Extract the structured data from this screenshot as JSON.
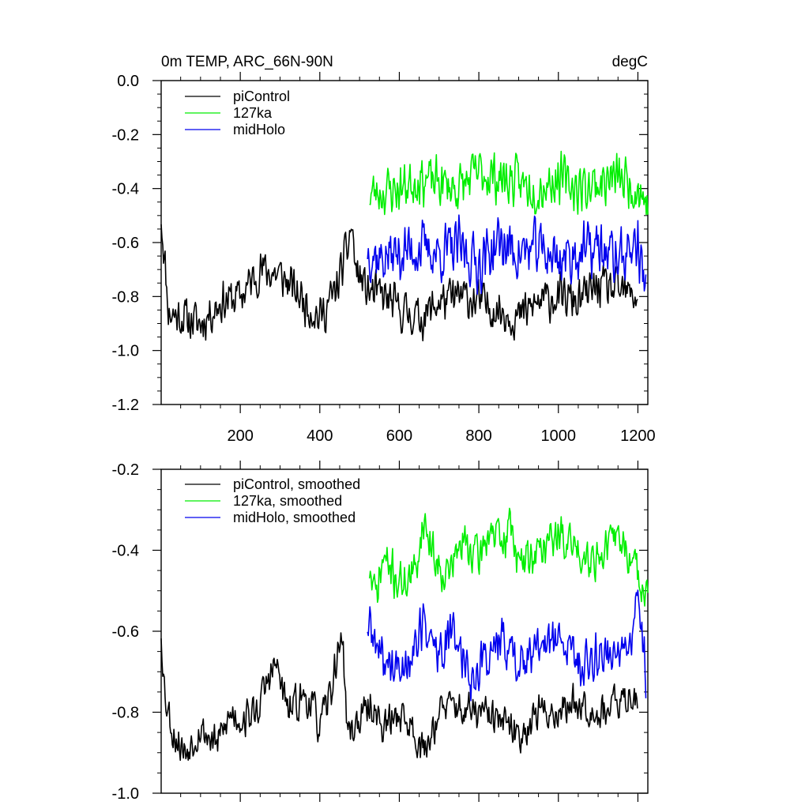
{
  "chart_data": [
    {
      "type": "line",
      "title": "0m TEMP, ARC_66N-90N",
      "units": "degC",
      "xlabel": "",
      "ylabel": "",
      "xlim": [
        1,
        1225
      ],
      "ylim": [
        -1.2,
        0.0
      ],
      "xticks": [
        200,
        400,
        600,
        800,
        1000,
        1200
      ],
      "xtick_labels": [
        "200",
        "400",
        "600",
        "800",
        "1000",
        "1200"
      ],
      "yticks": [
        0.0,
        -0.2,
        -0.4,
        -0.6,
        -0.8,
        -1.0,
        -1.2
      ],
      "ytick_labels": [
        "0.0",
        "-0.2",
        "-0.4",
        "-0.6",
        "-0.8",
        "-1.0",
        "-1.2"
      ],
      "legend": "top-left",
      "series": [
        {
          "name": "piControl",
          "color": "#000000",
          "x": [
            1,
            1200
          ],
          "anchors": [
            [
              1,
              -0.5
            ],
            [
              20,
              -0.86
            ],
            [
              60,
              -0.88
            ],
            [
              100,
              -0.9
            ],
            [
              150,
              -0.82
            ],
            [
              200,
              -0.8
            ],
            [
              250,
              -0.7
            ],
            [
              300,
              -0.72
            ],
            [
              350,
              -0.8
            ],
            [
              400,
              -0.88
            ],
            [
              440,
              -0.78
            ],
            [
              470,
              -0.62
            ],
            [
              480,
              -0.53
            ],
            [
              490,
              -0.7
            ],
            [
              520,
              -0.78
            ],
            [
              560,
              -0.8
            ],
            [
              600,
              -0.85
            ],
            [
              655,
              -0.88
            ],
            [
              700,
              -0.82
            ],
            [
              760,
              -0.8
            ],
            [
              800,
              -0.82
            ],
            [
              850,
              -0.85
            ],
            [
              900,
              -0.88
            ],
            [
              950,
              -0.82
            ],
            [
              1000,
              -0.8
            ],
            [
              1050,
              -0.82
            ],
            [
              1100,
              -0.76
            ],
            [
              1150,
              -0.78
            ],
            [
              1200,
              -0.8
            ]
          ],
          "amp": 0.06,
          "seed": 11
        },
        {
          "name": "127ka",
          "color": "#00ee00",
          "x": [
            525,
            1225
          ],
          "anchors": [
            [
              525,
              -0.42
            ],
            [
              600,
              -0.4
            ],
            [
              650,
              -0.36
            ],
            [
              700,
              -0.38
            ],
            [
              750,
              -0.4
            ],
            [
              800,
              -0.34
            ],
            [
              850,
              -0.36
            ],
            [
              900,
              -0.38
            ],
            [
              950,
              -0.4
            ],
            [
              1000,
              -0.36
            ],
            [
              1050,
              -0.4
            ],
            [
              1100,
              -0.38
            ],
            [
              1150,
              -0.36
            ],
            [
              1200,
              -0.4
            ],
            [
              1225,
              -0.46
            ]
          ],
          "amp": 0.07,
          "seed": 23
        },
        {
          "name": "midHolo",
          "color": "#0000ee",
          "x": [
            520,
            1220
          ],
          "anchors": [
            [
              520,
              -0.62
            ],
            [
              550,
              -0.66
            ],
            [
              600,
              -0.64
            ],
            [
              650,
              -0.62
            ],
            [
              700,
              -0.64
            ],
            [
              750,
              -0.62
            ],
            [
              800,
              -0.68
            ],
            [
              850,
              -0.6
            ],
            [
              900,
              -0.64
            ],
            [
              950,
              -0.62
            ],
            [
              1000,
              -0.66
            ],
            [
              1050,
              -0.64
            ],
            [
              1100,
              -0.62
            ],
            [
              1150,
              -0.66
            ],
            [
              1200,
              -0.6
            ],
            [
              1220,
              -0.8
            ]
          ],
          "amp": 0.08,
          "seed": 37
        }
      ]
    },
    {
      "type": "line",
      "title": "",
      "xlabel": "",
      "ylabel": "",
      "xlim": [
        1,
        1225
      ],
      "ylim": [
        -1.0,
        -0.2
      ],
      "xticks": [
        200,
        400,
        600,
        800,
        1000,
        1200
      ],
      "yticks": [
        -0.2,
        -0.4,
        -0.6,
        -0.8,
        -1.0
      ],
      "ytick_labels": [
        "-0.2",
        "-0.4",
        "-0.6",
        "-0.8",
        "-1.0"
      ],
      "legend": "top-left",
      "series": [
        {
          "name": "piControl, smoothed",
          "color": "#000000",
          "x": [
            1,
            1200
          ],
          "anchors": [
            [
              1,
              -0.6
            ],
            [
              10,
              -0.75
            ],
            [
              30,
              -0.85
            ],
            [
              60,
              -0.9
            ],
            [
              100,
              -0.84
            ],
            [
              140,
              -0.88
            ],
            [
              180,
              -0.8
            ],
            [
              200,
              -0.82
            ],
            [
              240,
              -0.8
            ],
            [
              270,
              -0.72
            ],
            [
              290,
              -0.68
            ],
            [
              320,
              -0.8
            ],
            [
              360,
              -0.76
            ],
            [
              380,
              -0.78
            ],
            [
              400,
              -0.84
            ],
            [
              430,
              -0.74
            ],
            [
              455,
              -0.6
            ],
            [
              470,
              -0.85
            ],
            [
              500,
              -0.82
            ],
            [
              530,
              -0.78
            ],
            [
              560,
              -0.84
            ],
            [
              600,
              -0.8
            ],
            [
              640,
              -0.85
            ],
            [
              660,
              -0.9
            ],
            [
              700,
              -0.8
            ],
            [
              740,
              -0.78
            ],
            [
              760,
              -0.8
            ],
            [
              800,
              -0.8
            ],
            [
              850,
              -0.82
            ],
            [
              900,
              -0.86
            ],
            [
              950,
              -0.8
            ],
            [
              1000,
              -0.8
            ],
            [
              1050,
              -0.77
            ],
            [
              1100,
              -0.8
            ],
            [
              1150,
              -0.78
            ],
            [
              1200,
              -0.75
            ]
          ],
          "amp": 0.035,
          "seed": 53
        },
        {
          "name": "127ka, smoothed",
          "color": "#00ee00",
          "x": [
            525,
            1225
          ],
          "anchors": [
            [
              525,
              -0.45
            ],
            [
              540,
              -0.52
            ],
            [
              560,
              -0.42
            ],
            [
              600,
              -0.48
            ],
            [
              640,
              -0.46
            ],
            [
              660,
              -0.32
            ],
            [
              690,
              -0.42
            ],
            [
              720,
              -0.46
            ],
            [
              760,
              -0.38
            ],
            [
              800,
              -0.42
            ],
            [
              830,
              -0.34
            ],
            [
              860,
              -0.4
            ],
            [
              880,
              -0.32
            ],
            [
              900,
              -0.44
            ],
            [
              950,
              -0.4
            ],
            [
              1000,
              -0.36
            ],
            [
              1050,
              -0.4
            ],
            [
              1100,
              -0.42
            ],
            [
              1150,
              -0.36
            ],
            [
              1200,
              -0.46
            ],
            [
              1225,
              -0.5
            ]
          ],
          "amp": 0.04,
          "seed": 71
        },
        {
          "name": "midHolo, smoothed",
          "color": "#0000ee",
          "x": [
            520,
            1220
          ],
          "anchors": [
            [
              520,
              -0.58
            ],
            [
              550,
              -0.66
            ],
            [
              600,
              -0.7
            ],
            [
              640,
              -0.64
            ],
            [
              660,
              -0.58
            ],
            [
              700,
              -0.66
            ],
            [
              740,
              -0.6
            ],
            [
              780,
              -0.72
            ],
            [
              820,
              -0.66
            ],
            [
              860,
              -0.62
            ],
            [
              900,
              -0.68
            ],
            [
              940,
              -0.66
            ],
            [
              980,
              -0.62
            ],
            [
              1020,
              -0.64
            ],
            [
              1060,
              -0.68
            ],
            [
              1100,
              -0.66
            ],
            [
              1150,
              -0.64
            ],
            [
              1180,
              -0.66
            ],
            [
              1200,
              -0.5
            ],
            [
              1220,
              -0.7
            ]
          ],
          "amp": 0.045,
          "seed": 89
        }
      ]
    }
  ]
}
